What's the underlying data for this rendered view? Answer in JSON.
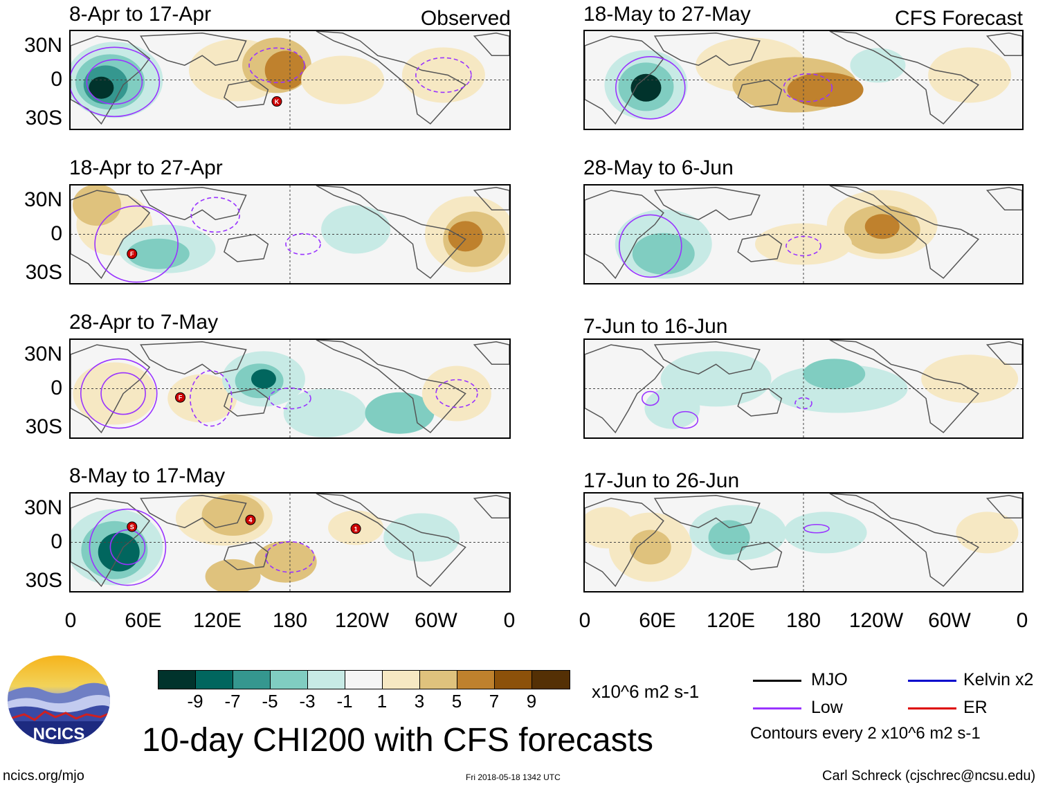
{
  "header": {
    "observed_label": "Observed",
    "forecast_label": "CFS Forecast"
  },
  "panels_left": [
    {
      "title": "8-Apr to 17-Apr",
      "storms": [
        "K"
      ]
    },
    {
      "title": "18-Apr to 27-Apr",
      "storms": [
        "F"
      ]
    },
    {
      "title": "28-Apr to 7-May",
      "storms": [
        "F"
      ]
    },
    {
      "title": "8-May to 17-May",
      "storms": [
        "S",
        "4",
        "1"
      ]
    }
  ],
  "panels_right": [
    {
      "title": "18-May to 27-May"
    },
    {
      "title": "28-May to 6-Jun"
    },
    {
      "title": "7-Jun to 16-Jun"
    },
    {
      "title": "17-Jun to 26-Jun"
    }
  ],
  "axes": {
    "lat_labels": [
      "30N",
      "0",
      "30S"
    ],
    "lon_labels": [
      "0",
      "60E",
      "120E",
      "180",
      "120W",
      "60W",
      "0"
    ]
  },
  "colorbar": {
    "colors": [
      "#01332c",
      "#01665e",
      "#35978f",
      "#80cdc1",
      "#c7eae5",
      "#f5f5f5",
      "#f6e8c3",
      "#dfc27d",
      "#bf812d",
      "#8c510a",
      "#543005"
    ],
    "ticks": [
      "-9",
      "-7",
      "-5",
      "-3",
      "-1",
      "1",
      "3",
      "5",
      "7",
      "9"
    ],
    "units": "x10^6 m2 s-1"
  },
  "legend": {
    "mjo": {
      "label": "MJO",
      "color": "#000000"
    },
    "low": {
      "label": "Low",
      "color": "#9933ff"
    },
    "kelvin": {
      "label": "Kelvin x2",
      "color": "#0000cc"
    },
    "er": {
      "label": "ER",
      "color": "#dd0000"
    },
    "contour_note": "Contours every 2 x10^6 m2 s-1"
  },
  "main_title": "10-day CHI200 with CFS forecasts",
  "logo_text": "NCICS",
  "footer": {
    "url": "ncics.org/mjo",
    "timestamp": "Fri 2018-05-18 1342 UTC",
    "author": "Carl Schreck (cjschrec@ncsu.edu)"
  }
}
